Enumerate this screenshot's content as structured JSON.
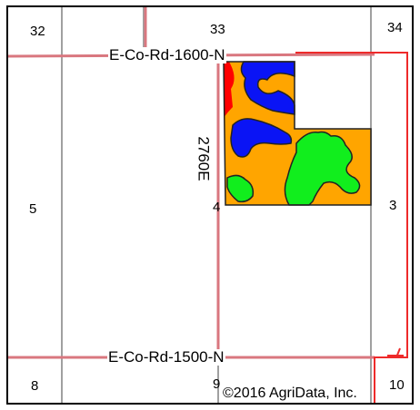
{
  "map": {
    "sections": [
      "32",
      "33",
      "34",
      "5",
      "4",
      "3",
      "8",
      "9",
      "10"
    ],
    "roads": {
      "north": "E-Co-Rd-1600-N",
      "south": "E-Co-Rd-1500-N",
      "east_west": "2760E"
    },
    "copyright": "©2016 AgriData, Inc.",
    "colors": {
      "section_line": "#a0a0a0",
      "road_line": "#d9777f",
      "field_boundary": "#ee2a2a",
      "soil_orange": "#ffa500",
      "soil_blue": "#0a14f5",
      "soil_green": "#11ee1d",
      "soil_red": "#ff0000",
      "soil_outline": "#222222"
    }
  }
}
